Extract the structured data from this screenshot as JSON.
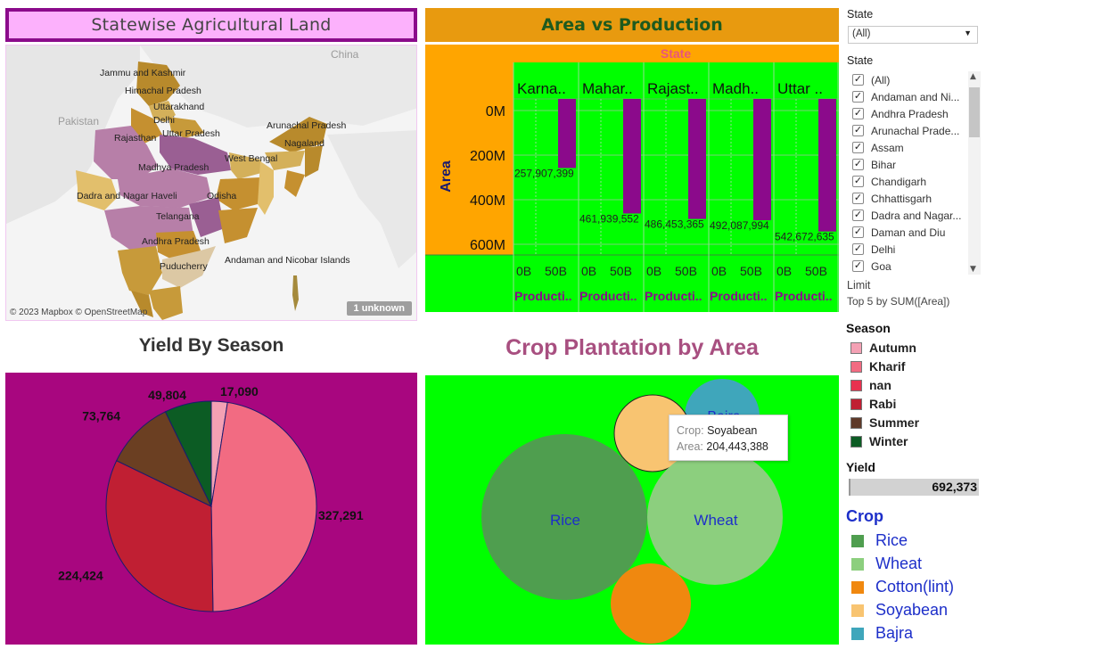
{
  "map": {
    "title": "Statewise Agricultural Land",
    "copyright": "© 2023 Mapbox © OpenStreetMap",
    "unknown_badge": "1 unknown",
    "background_labels": [
      "China",
      "Pakistan"
    ],
    "state_labels": [
      "Jammu and Kashmir",
      "Himachal Pradesh",
      "Uttarakhand",
      "Delhi",
      "Uttar Pradesh",
      "Rajasthan",
      "Arunachal Pradesh",
      "Nagaland",
      "West Bengal",
      "Madhya Pradesh",
      "Dadra and Nagar Haveli",
      "Odisha",
      "Telangana",
      "Andhra Pradesh",
      "Puducherry",
      "Andaman and Nicobar Islands"
    ]
  },
  "area_vs_production": {
    "title": "Area vs Production",
    "column_header": "State",
    "y_axis_title": "Area",
    "y_ticks": [
      "0M",
      "200M",
      "400M",
      "600M"
    ],
    "x_ticks": [
      "0B",
      "50B"
    ],
    "x_axis_label": "Producti..",
    "colors": {
      "bar": "#8b0a8b",
      "panel": "#00ff00",
      "header": "#ffa500"
    }
  },
  "chart_data": {
    "type": "bar",
    "title": "Area vs Production",
    "xlabel": "Production",
    "ylabel": "Area",
    "categories": [
      "Karna..",
      "Mahar..",
      "Rajast..",
      "Madh..",
      "Uttar .."
    ],
    "values": [
      257907399,
      461939552,
      486453365,
      492087994,
      542672635
    ],
    "value_labels": [
      "257,907,399",
      "461,939,552",
      "486,453,365",
      "492,087,994",
      "542,672,635"
    ],
    "ylim": [
      0,
      600000000
    ]
  },
  "yield_by_season": {
    "title": "Yield By Season",
    "slices": [
      {
        "label": "Autumn",
        "value": 17090,
        "display": "17,090",
        "color": "#f4a1b4"
      },
      {
        "label": "Kharif",
        "value": 327291,
        "display": "327,291",
        "color": "#f26b82"
      },
      {
        "label": "Rabi",
        "value": 224424,
        "display": "224,424",
        "color": "#c01f33"
      },
      {
        "label": "Summer",
        "value": 73764,
        "display": "73,764",
        "color": "#6b3f22"
      },
      {
        "label": "Winter",
        "value": 49804,
        "display": "49,804",
        "color": "#0c5c24"
      }
    ]
  },
  "crop_plantation": {
    "title": "Crop Plantation by Area",
    "bubbles": [
      {
        "label": "Rice",
        "color": "#4f9e4f"
      },
      {
        "label": "Wheat",
        "color": "#8ccf7e"
      },
      {
        "label": "",
        "color": "#f0880f"
      },
      {
        "label": "",
        "color": "#f8c471"
      },
      {
        "label": "Bajra",
        "color": "#3fa6bb"
      }
    ],
    "tooltip": {
      "crop_key": "Crop:",
      "crop_value": "Soyabean",
      "area_key": "Area:",
      "area_value": "204,443,388"
    }
  },
  "filters": {
    "state_dropdown_label": "State",
    "state_dropdown_value": "(All)",
    "state_list_label": "State",
    "states": [
      "(All)",
      "Andaman and Ni...",
      "Andhra Pradesh",
      "Arunachal Prade...",
      "Assam",
      "Bihar",
      "Chandigarh",
      "Chhattisgarh",
      "Dadra and Nagar...",
      "Daman and Diu",
      "Delhi",
      "Goa"
    ],
    "limit_label": "Limit",
    "limit_value": "Top 5 by SUM([Area])"
  },
  "season_legend": {
    "title": "Season",
    "items": [
      {
        "label": "Autumn",
        "color": "#f4a1b4"
      },
      {
        "label": "Kharif",
        "color": "#f26b82"
      },
      {
        "label": "nan",
        "color": "#e8314f"
      },
      {
        "label": "Rabi",
        "color": "#c01f33"
      },
      {
        "label": "Summer",
        "color": "#5e3a29"
      },
      {
        "label": "Winter",
        "color": "#0c5c24"
      }
    ]
  },
  "yield_filter": {
    "label": "Yield",
    "value": "692,373"
  },
  "crop_legend": {
    "title": "Crop",
    "items": [
      {
        "label": "Rice",
        "color": "#4f9e4f"
      },
      {
        "label": "Wheat",
        "color": "#8ccf7e"
      },
      {
        "label": "Cotton(lint)",
        "color": "#f0880f"
      },
      {
        "label": "Soyabean",
        "color": "#f8c471"
      },
      {
        "label": "Bajra",
        "color": "#3fa6bb"
      }
    ]
  }
}
